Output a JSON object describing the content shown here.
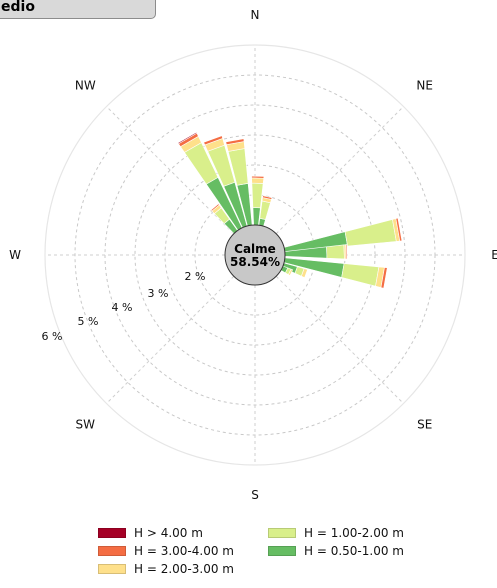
{
  "title_box": {
    "label": "edio"
  },
  "chart_data": {
    "type": "windrose",
    "directions": [
      "N",
      "NE",
      "E",
      "SE",
      "S",
      "SW",
      "W",
      "NW"
    ],
    "radial_ticks": [
      "2 %",
      "3 %",
      "4 %",
      "5 %",
      "6 %"
    ],
    "calm": {
      "label": "Calme",
      "value": "58.54%"
    },
    "bins": [
      {
        "name": "H > 4.00 m",
        "color": "#a50026"
      },
      {
        "name": "H = 3.00-4.00 m",
        "color": "#f46d43"
      },
      {
        "name": "H = 2.00-3.00 m",
        "color": "#fee08b"
      },
      {
        "name": "H = 1.00-2.00 m",
        "color": "#d9ef8b"
      },
      {
        "name": "H = 0.50-1.00 m",
        "color": "#66bd63"
      }
    ],
    "sectors": [
      {
        "dir": 80,
        "values": [
          0,
          0.06,
          0.1,
          1.4,
          1.8
        ]
      },
      {
        "dir": 88,
        "values": [
          0,
          0.03,
          0.05,
          0.5,
          1.2
        ]
      },
      {
        "dir": 100,
        "values": [
          0,
          0.08,
          0.16,
          1.0,
          1.7
        ]
      },
      {
        "dir": 110,
        "values": [
          0,
          0,
          0.1,
          0.2,
          0.4
        ]
      },
      {
        "dir": 116,
        "values": [
          0,
          0,
          0.05,
          0.1,
          0.15
        ]
      },
      {
        "dir": 330,
        "values": [
          0.03,
          0.1,
          0.2,
          1.1,
          1.6
        ]
      },
      {
        "dir": 340,
        "values": [
          0,
          0.08,
          0.2,
          1.1,
          1.3
        ]
      },
      {
        "dir": 350,
        "values": [
          0,
          0.08,
          0.2,
          1.0,
          1.2
        ]
      },
      {
        "dir": 2,
        "values": [
          0,
          0.05,
          0.15,
          0.7,
          0.5
        ]
      },
      {
        "dir": 12,
        "values": [
          0,
          0.05,
          0.1,
          0.5,
          0.2
        ]
      },
      {
        "dir": 320,
        "values": [
          0,
          0.04,
          0.1,
          0.4,
          0.4
        ]
      }
    ]
  },
  "legend": {
    "items": [
      {
        "label": "H > 4.00 m",
        "color": "#a50026"
      },
      {
        "label": "H = 1.00-2.00 m",
        "color": "#d9ef8b"
      },
      {
        "label": "H = 3.00-4.00 m",
        "color": "#f46d43"
      },
      {
        "label": "H = 0.50-1.00 m",
        "color": "#66bd63"
      },
      {
        "label": "H = 2.00-3.00 m",
        "color": "#fee08b"
      }
    ]
  }
}
